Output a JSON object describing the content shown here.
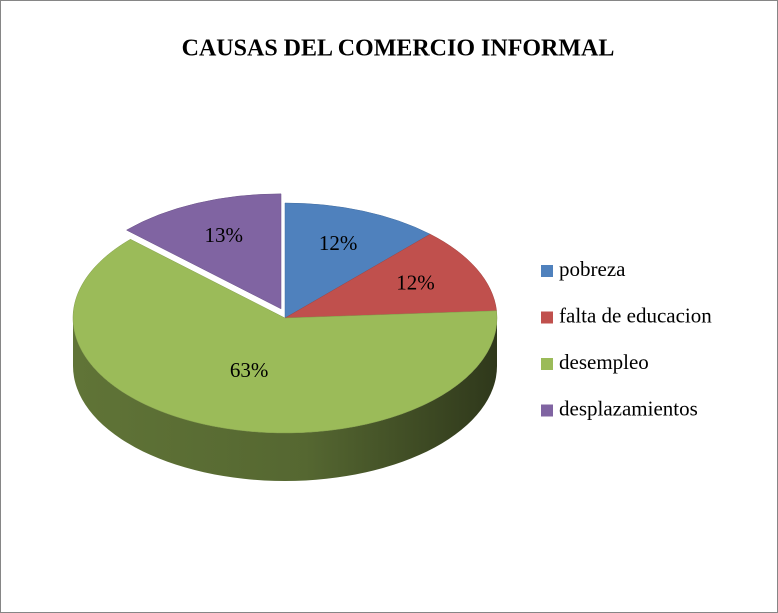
{
  "chart_data": {
    "type": "pie",
    "title": "CAUSAS DEL COMERCIO INFORMAL",
    "categories": [
      "pobreza",
      "falta de educacion",
      "desempleo",
      "desplazamientos"
    ],
    "values": [
      12,
      12,
      63,
      13
    ],
    "value_labels": [
      "12%",
      "12%",
      "63%",
      "13%"
    ],
    "colors": [
      "#4f81bd",
      "#c0504d",
      "#9bbb59",
      "#8064a2"
    ],
    "legend": "right"
  }
}
